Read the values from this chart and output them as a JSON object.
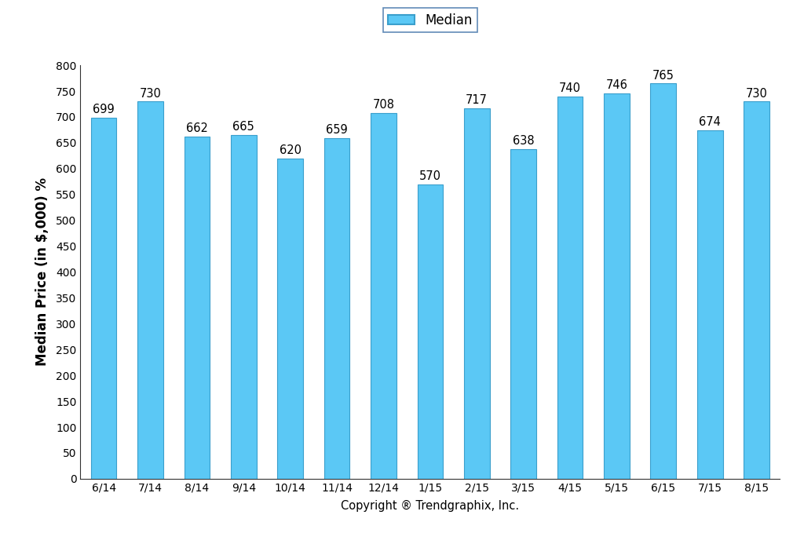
{
  "categories": [
    "6/14",
    "7/14",
    "8/14",
    "9/14",
    "10/14",
    "11/14",
    "12/14",
    "1/15",
    "2/15",
    "3/15",
    "4/15",
    "5/15",
    "6/15",
    "7/15",
    "8/15"
  ],
  "values": [
    699,
    730,
    662,
    665,
    620,
    659,
    708,
    570,
    717,
    638,
    740,
    746,
    765,
    674,
    730
  ],
  "bar_color": "#5BC8F5",
  "bar_edge_color": "#3A9FCC",
  "ylabel": "Median Price (in $,000) %",
  "xlabel": "Copyright ® Trendgraphix, Inc.",
  "ylim": [
    0,
    800
  ],
  "yticks": [
    0,
    50,
    100,
    150,
    200,
    250,
    300,
    350,
    400,
    450,
    500,
    550,
    600,
    650,
    700,
    750,
    800
  ],
  "legend_label": "Median",
  "legend_color": "#5BC8F5",
  "legend_edge_color": "#3A9FCC",
  "bar_width": 0.55,
  "annotation_fontsize": 10.5,
  "axis_label_fontsize": 12,
  "tick_fontsize": 10,
  "xlabel_fontsize": 10.5,
  "background_color": "#ffffff"
}
